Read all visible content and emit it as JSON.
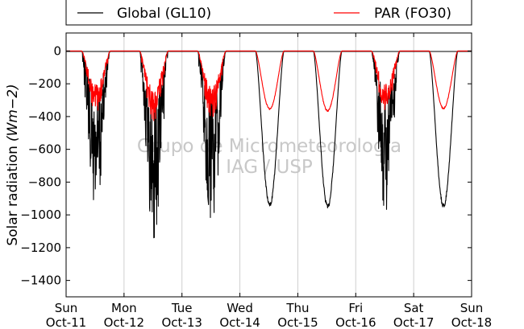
{
  "chart_data": {
    "type": "line",
    "ylabel": "Solar radiation",
    "ylabel_units": "(Wm−2)",
    "ylim": [
      -1500,
      110
    ],
    "yticks": [
      0,
      -200,
      -400,
      -600,
      -800,
      -1000,
      -1200,
      -1400
    ],
    "ytick_labels": [
      "0",
      "−200",
      "−400",
      "−600",
      "−800",
      "−1000",
      "−1200",
      "−1400"
    ],
    "xlim": [
      0,
      7
    ],
    "x_units": "days from Sun Oct-11 00:00",
    "xticks": [
      0,
      1,
      2,
      3,
      4,
      5,
      6,
      7
    ],
    "xtick_labels": [
      {
        "day": "Sun",
        "date": "Oct-11"
      },
      {
        "day": "Mon",
        "date": "Oct-12"
      },
      {
        "day": "Tue",
        "date": "Oct-13"
      },
      {
        "day": "Wed",
        "date": "Oct-14"
      },
      {
        "day": "Thu",
        "date": "Oct-15"
      },
      {
        "day": "Fri",
        "date": "Oct-16"
      },
      {
        "day": "Sat",
        "date": "Oct-17"
      },
      {
        "day": "Sun",
        "date": "Oct-18"
      }
    ],
    "vertical_grid": true,
    "legend_position": "top, above plot",
    "watermark": [
      "Grupo de Micrometeorologia",
      "IAG / USP"
    ],
    "series": [
      {
        "name": "Global (GL10)",
        "color": "#000000",
        "daily_minimum": [
          -960,
          -1140,
          -1035,
          -955,
          -965,
          -975,
          -960
        ],
        "cloudy": [
          true,
          true,
          true,
          false,
          false,
          true,
          false
        ]
      },
      {
        "name": "PAR (FO30)",
        "color": "#ff0000",
        "daily_minimum": [
          -375,
          -425,
          -405,
          -360,
          -370,
          -360,
          -355
        ],
        "cloudy": [
          true,
          true,
          true,
          false,
          false,
          true,
          false
        ]
      }
    ]
  }
}
